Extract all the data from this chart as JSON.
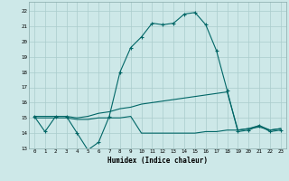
{
  "xlabel": "Humidex (Indice chaleur)",
  "background_color": "#cde8e8",
  "grid_color": "#aacccc",
  "line_color": "#006666",
  "xlim": [
    -0.5,
    23.5
  ],
  "ylim": [
    13,
    22.6
  ],
  "yticks": [
    13,
    14,
    15,
    16,
    17,
    18,
    19,
    20,
    21,
    22
  ],
  "xticks": [
    0,
    1,
    2,
    3,
    4,
    5,
    6,
    7,
    8,
    9,
    10,
    11,
    12,
    13,
    14,
    15,
    16,
    17,
    18,
    19,
    20,
    21,
    22,
    23
  ],
  "line1_x": [
    0,
    1,
    2,
    3,
    4,
    5,
    6,
    7,
    8,
    9,
    10,
    11,
    12,
    13,
    14,
    15,
    16,
    17,
    18,
    19,
    20,
    21,
    22,
    23
  ],
  "line1_y": [
    15.1,
    14.1,
    15.1,
    15.1,
    14.0,
    12.9,
    13.4,
    15.1,
    18.0,
    19.6,
    20.3,
    21.2,
    21.1,
    21.2,
    21.8,
    21.9,
    21.1,
    19.4,
    16.8,
    14.1,
    14.2,
    14.5,
    14.1,
    14.2
  ],
  "line2_x": [
    0,
    1,
    2,
    3,
    4,
    5,
    6,
    7,
    8,
    9,
    10,
    11,
    12,
    13,
    14,
    15,
    16,
    17,
    18,
    19,
    20,
    21,
    22,
    23
  ],
  "line2_y": [
    15.1,
    15.1,
    15.1,
    15.1,
    15.0,
    15.1,
    15.3,
    15.4,
    15.6,
    15.7,
    15.9,
    16.0,
    16.1,
    16.2,
    16.3,
    16.4,
    16.5,
    16.6,
    16.7,
    14.2,
    14.3,
    14.5,
    14.2,
    14.3
  ],
  "line3_x": [
    0,
    1,
    2,
    3,
    4,
    5,
    6,
    7,
    8,
    9,
    10,
    11,
    12,
    13,
    14,
    15,
    16,
    17,
    18,
    19,
    20,
    21,
    22,
    23
  ],
  "line3_y": [
    15.0,
    15.0,
    15.0,
    15.0,
    14.9,
    14.9,
    15.0,
    15.0,
    15.0,
    15.1,
    14.0,
    14.0,
    14.0,
    14.0,
    14.0,
    14.0,
    14.1,
    14.1,
    14.2,
    14.2,
    14.3,
    14.4,
    14.2,
    14.3
  ]
}
